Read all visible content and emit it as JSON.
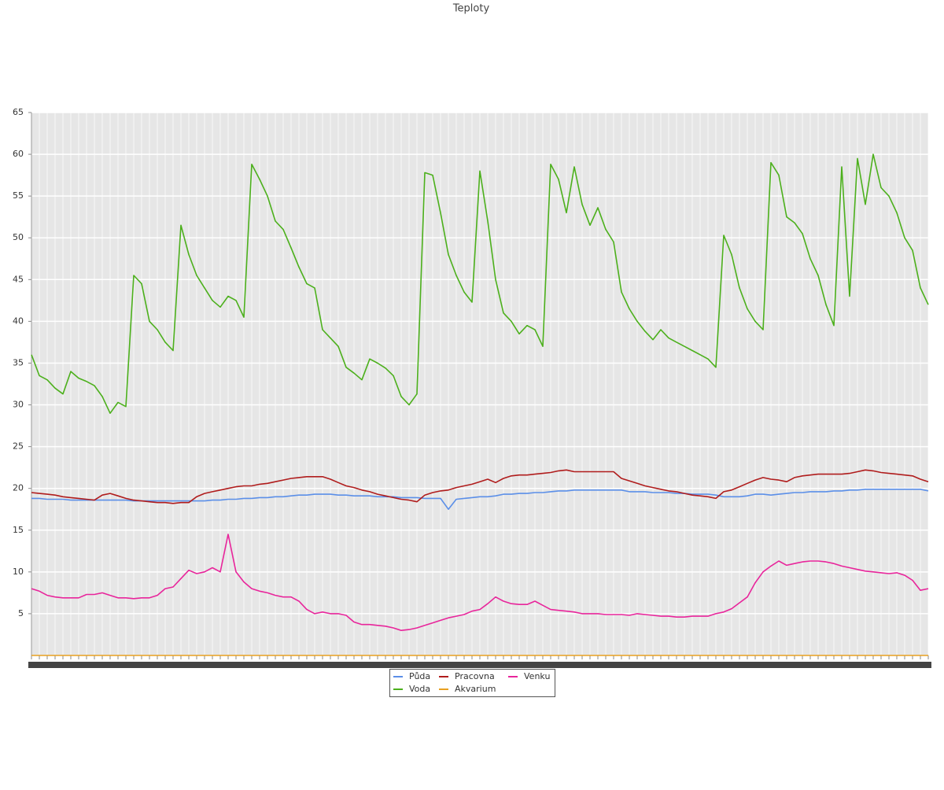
{
  "chart_data": {
    "type": "line",
    "title": "Teploty",
    "categories": [
      null,
      null,
      null,
      null,
      null,
      null,
      null,
      null,
      null,
      null,
      null,
      null,
      null,
      null,
      null,
      null,
      null,
      null,
      null,
      null,
      null,
      null,
      null,
      null,
      null,
      null,
      null,
      null,
      null,
      null,
      null,
      null,
      null,
      null,
      null,
      null,
      null,
      null,
      null,
      null,
      null,
      null,
      null,
      null,
      null,
      null,
      null,
      null,
      null,
      null,
      null,
      null,
      null,
      null,
      null,
      null,
      null,
      null,
      null,
      null,
      null,
      null,
      null,
      null,
      null,
      null,
      null,
      null,
      null,
      null,
      null,
      null,
      null,
      null,
      null,
      null,
      null,
      null,
      null,
      null,
      null,
      null,
      null,
      null,
      null,
      null,
      null,
      null,
      null,
      null,
      null,
      null,
      null,
      null,
      null,
      null,
      null,
      null,
      null,
      null,
      null,
      null,
      null,
      null,
      null,
      null,
      null,
      null,
      null,
      null,
      null,
      null,
      null,
      null,
      null
    ],
    "ylim": [
      0,
      65
    ],
    "yticks": [
      5,
      10,
      15,
      20,
      25,
      30,
      35,
      40,
      45,
      50,
      55,
      60,
      65
    ],
    "grid": true,
    "series": [
      {
        "name": "Půda",
        "color": "#5b8fe8",
        "values": [
          18.8,
          18.8,
          18.7,
          18.7,
          18.7,
          18.6,
          18.6,
          18.6,
          18.6,
          18.6,
          18.6,
          18.6,
          18.6,
          18.5,
          18.5,
          18.5,
          18.5,
          18.5,
          18.5,
          18.5,
          18.5,
          18.5,
          18.5,
          18.6,
          18.6,
          18.7,
          18.7,
          18.8,
          18.8,
          18.9,
          18.9,
          19,
          19,
          19.1,
          19.2,
          19.2,
          19.3,
          19.3,
          19.3,
          19.2,
          19.2,
          19.1,
          19.1,
          19.1,
          19,
          19,
          19,
          18.9,
          18.9,
          18.9,
          18.8,
          18.8,
          18.8,
          17.5,
          18.7,
          18.8,
          18.9,
          19,
          19,
          19.1,
          19.3,
          19.3,
          19.4,
          19.4,
          19.5,
          19.5,
          19.6,
          19.7,
          19.7,
          19.8,
          19.8,
          19.8,
          19.8,
          19.8,
          19.8,
          19.8,
          19.6,
          19.6,
          19.6,
          19.5,
          19.5,
          19.5,
          19.4,
          19.4,
          19.3,
          19.3,
          19.3,
          19.2,
          19,
          19,
          19,
          19.1,
          19.3,
          19.3,
          19.2,
          19.3,
          19.4,
          19.5,
          19.5,
          19.6,
          19.6,
          19.6,
          19.7,
          19.7,
          19.8,
          19.8,
          19.9,
          19.9,
          19.9,
          19.9,
          19.9,
          19.9,
          19.9,
          19.9,
          19.7
        ]
      },
      {
        "name": "Voda",
        "color": "#4cb01c",
        "values": [
          36,
          33.5,
          33,
          32,
          31.3,
          34,
          33.2,
          32.8,
          32.3,
          31,
          29,
          30.3,
          29.8,
          45.5,
          44.5,
          40,
          39,
          37.5,
          36.5,
          51.5,
          48,
          45.5,
          44,
          42.5,
          41.7,
          43,
          42.5,
          40.5,
          58.8,
          57,
          55,
          52,
          51,
          48.8,
          46.5,
          44.5,
          44,
          39,
          38,
          37,
          34.5,
          33.8,
          33,
          35.5,
          35,
          34.4,
          33.5,
          31,
          30,
          31.3,
          57.8,
          57.5,
          53,
          48,
          45.5,
          43.5,
          42.3,
          58,
          52,
          45,
          41,
          40,
          38.5,
          39.5,
          39,
          37,
          58.8,
          57,
          53,
          58.5,
          54,
          51.5,
          53.6,
          51,
          49.5,
          43.5,
          41.5,
          40,
          38.8,
          37.8,
          39,
          38,
          37.5,
          37,
          36.5,
          36,
          35.5,
          34.5,
          50.3,
          48,
          44,
          41.5,
          40,
          39,
          59,
          57.5,
          52.5,
          51.8,
          50.5,
          47.5,
          45.5,
          42,
          39.5,
          58.5,
          43,
          59.5,
          54,
          60,
          56,
          55,
          53,
          50,
          48.5,
          44,
          42
        ]
      },
      {
        "name": "Pracovna",
        "color": "#b01c1c",
        "values": [
          19.5,
          19.4,
          19.3,
          19.2,
          19,
          18.9,
          18.8,
          18.7,
          18.6,
          19.2,
          19.4,
          19.1,
          18.8,
          18.6,
          18.5,
          18.4,
          18.3,
          18.3,
          18.2,
          18.3,
          18.3,
          19,
          19.4,
          19.6,
          19.8,
          20,
          20.2,
          20.3,
          20.3,
          20.5,
          20.6,
          20.8,
          21,
          21.2,
          21.3,
          21.4,
          21.4,
          21.4,
          21.1,
          20.7,
          20.3,
          20.1,
          19.8,
          19.6,
          19.3,
          19.1,
          18.9,
          18.7,
          18.6,
          18.4,
          19.2,
          19.5,
          19.7,
          19.8,
          20.1,
          20.3,
          20.5,
          20.8,
          21.1,
          20.7,
          21.2,
          21.5,
          21.6,
          21.6,
          21.7,
          21.8,
          21.9,
          22.1,
          22.2,
          22,
          22,
          22,
          22,
          22,
          22,
          21.2,
          20.9,
          20.6,
          20.3,
          20.1,
          19.9,
          19.7,
          19.6,
          19.4,
          19.2,
          19.1,
          19,
          18.8,
          19.6,
          19.8,
          20.2,
          20.6,
          21,
          21.3,
          21.1,
          21,
          20.8,
          21.3,
          21.5,
          21.6,
          21.7,
          21.7,
          21.7,
          21.7,
          21.8,
          22,
          22.2,
          22.1,
          21.9,
          21.8,
          21.7,
          21.6,
          21.5,
          21.1,
          20.8
        ]
      },
      {
        "name": "Akvarium",
        "color": "#e8a020",
        "values": [
          0,
          0,
          0,
          0,
          0,
          0,
          0,
          0,
          0,
          0,
          0,
          0,
          0,
          0,
          0,
          0,
          0,
          0,
          0,
          0,
          0,
          0,
          0,
          0,
          0,
          0,
          0,
          0,
          0,
          0,
          0,
          0,
          0,
          0,
          0,
          0,
          0,
          0,
          0,
          0,
          0,
          0,
          0,
          0,
          0,
          0,
          0,
          0,
          0,
          0,
          0,
          0,
          0,
          0,
          0,
          0,
          0,
          0,
          0,
          0,
          0,
          0,
          0,
          0,
          0,
          0,
          0,
          0,
          0,
          0,
          0,
          0,
          0,
          0,
          0,
          0,
          0,
          0,
          0,
          0,
          0,
          0,
          0,
          0,
          0,
          0,
          0,
          0,
          0,
          0,
          0,
          0,
          0,
          0,
          0,
          0,
          0,
          0,
          0,
          0,
          0,
          0,
          0,
          0,
          0,
          0,
          0,
          0,
          0,
          0,
          0,
          0,
          0,
          0,
          0
        ]
      },
      {
        "name": "Venku",
        "color": "#e8259b",
        "values": [
          8,
          7.7,
          7.2,
          7,
          6.9,
          6.9,
          6.9,
          7.3,
          7.3,
          7.5,
          7.2,
          6.9,
          6.9,
          6.8,
          6.9,
          6.9,
          7.2,
          8,
          8.2,
          9.2,
          10.2,
          9.8,
          10,
          10.5,
          10,
          14.5,
          10,
          8.8,
          8,
          7.7,
          7.5,
          7.2,
          7,
          7,
          6.5,
          5.5,
          5,
          5.2,
          5,
          5,
          4.8,
          4,
          3.7,
          3.7,
          3.6,
          3.5,
          3.3,
          3,
          3.1,
          3.3,
          3.6,
          3.9,
          4.2,
          4.5,
          4.7,
          4.9,
          5.3,
          5.5,
          6.2,
          7,
          6.5,
          6.2,
          6.1,
          6.1,
          6.5,
          6,
          5.5,
          5.4,
          5.3,
          5.2,
          5,
          5,
          5,
          4.9,
          4.9,
          4.9,
          4.8,
          5,
          4.9,
          4.8,
          4.7,
          4.7,
          4.6,
          4.6,
          4.7,
          4.7,
          4.7,
          5,
          5.2,
          5.6,
          6.3,
          7,
          8.7,
          10,
          10.7,
          11.3,
          10.8,
          11,
          11.2,
          11.3,
          11.3,
          11.2,
          11,
          10.7,
          10.5,
          10.3,
          10.1,
          10,
          9.9,
          9.8,
          9.9,
          9.6,
          9,
          7.8,
          8
        ]
      }
    ]
  }
}
